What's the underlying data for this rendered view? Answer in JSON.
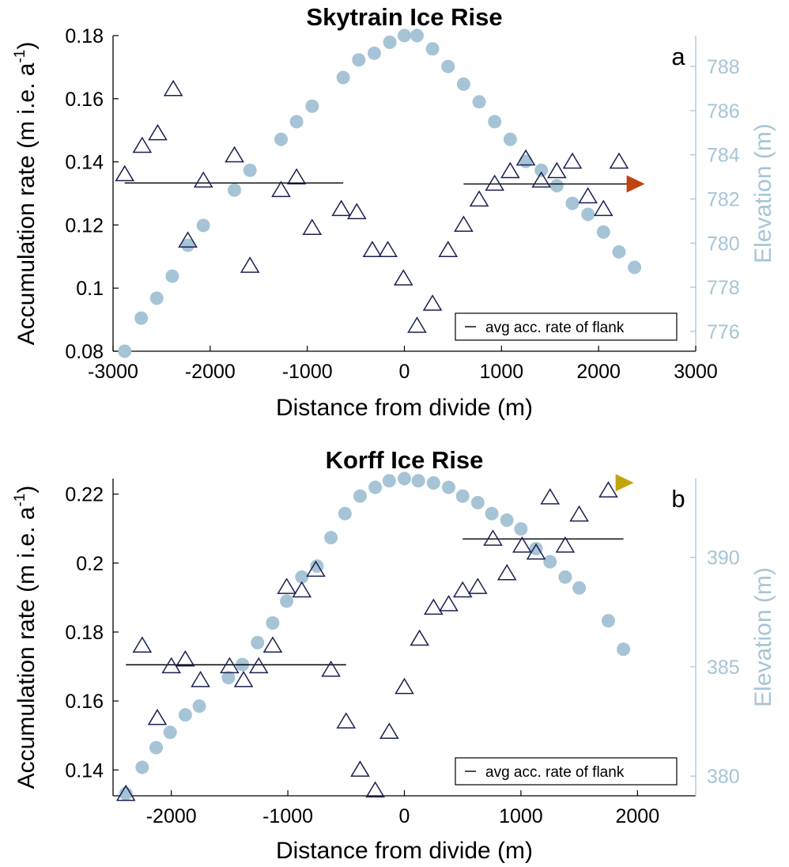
{
  "chart_data": [
    {
      "type": "scatter",
      "title": "Skytrain Ice Rise",
      "panel_label": "a",
      "xlabel": "Distance from divide (m)",
      "ylabel": "Accumulation rate (m i.e. a",
      "ylabel_superscript": "-1",
      "ylabel_close": ")",
      "y2label": "Elevation (m)",
      "xlim": [
        -3000,
        3000
      ],
      "ylim": [
        0.08,
        0.18
      ],
      "y2lim": [
        775.1,
        789.4
      ],
      "xticks": [
        -3000,
        -2000,
        -1000,
        0,
        1000,
        2000,
        3000
      ],
      "xtick_labels": [
        "-3000",
        "-2000",
        "-1000",
        "0",
        "1000",
        "2000",
        "3000"
      ],
      "yticks": [
        0.08,
        0.1,
        0.12,
        0.14,
        0.16,
        0.18
      ],
      "ytick_labels": [
        "0.08",
        "0.1",
        "0.12",
        "0.14",
        "0.16",
        "0.18"
      ],
      "y2ticks": [
        776,
        778,
        780,
        782,
        784,
        786,
        788
      ],
      "y2tick_labels": [
        "776",
        "778",
        "780",
        "782",
        "784",
        "786",
        "788"
      ],
      "legend": {
        "label": "avg acc. rate of flank",
        "position": "bottom-right"
      },
      "colors": {
        "accumulation": "#1a2050",
        "elevation": "#a6c4d6",
        "marker": "#c0440f",
        "axis_right": "#a6c4d6"
      },
      "elevation": {
        "x": [
          -2880,
          -2710,
          -2550,
          -2390,
          -2230,
          -2070,
          -1750,
          -1590,
          -1270,
          -1110,
          -950,
          -630,
          -470,
          -310,
          -150,
          0,
          130,
          290,
          450,
          610,
          770,
          930,
          1090,
          1250,
          1410,
          1570,
          1730,
          1890,
          2050,
          2210,
          2370
        ],
        "y": [
          775.1,
          776.6,
          777.5,
          778.5,
          779.9,
          780.8,
          782.4,
          783.3,
          784.7,
          785.5,
          786.2,
          787.5,
          788.3,
          788.6,
          789.1,
          789.4,
          789.4,
          788.8,
          788.0,
          787.2,
          786.4,
          785.5,
          784.7,
          783.7,
          783.3,
          782.6,
          781.8,
          781.3,
          780.5,
          779.6,
          778.9
        ]
      },
      "accumulation": {
        "x": [
          -2880,
          -2700,
          -2540,
          -2380,
          -2230,
          -2070,
          -1750,
          -1590,
          -1270,
          -1110,
          -950,
          -650,
          -490,
          -330,
          -170,
          -10,
          130,
          290,
          450,
          610,
          770,
          930,
          1090,
          1250,
          1410,
          1570,
          1730,
          1890,
          2050,
          2210
        ],
        "y": [
          0.136,
          0.145,
          0.149,
          0.163,
          0.115,
          0.134,
          0.142,
          0.107,
          0.131,
          0.135,
          0.119,
          0.125,
          0.124,
          0.112,
          0.112,
          0.103,
          0.088,
          0.095,
          0.112,
          0.12,
          0.128,
          0.133,
          0.137,
          0.141,
          0.134,
          0.137,
          0.14,
          0.129,
          0.125,
          0.14
        ]
      },
      "flank_averages": [
        {
          "x": [
            -2880,
            -630
          ],
          "y": 0.1333
        },
        {
          "x": [
            610,
            2370
          ],
          "y": 0.133
        }
      ],
      "marker_point": {
        "x": 2370,
        "y": 0.133
      }
    },
    {
      "type": "scatter",
      "title": "Korff Ice Rise",
      "panel_label": "b",
      "xlabel": "Distance from divide (m)",
      "ylabel": "Accumulation rate (m i.e. a",
      "ylabel_superscript": "-1",
      "ylabel_close": ")",
      "y2label": "Elevation (m)",
      "xlim": [
        -2500,
        2500
      ],
      "ylim": [
        0.1325,
        0.2245
      ],
      "y2lim": [
        379.1,
        393.6
      ],
      "xticks": [
        -2000,
        -1000,
        0,
        1000,
        2000
      ],
      "xtick_labels": [
        "-2000",
        "-1000",
        "0",
        "1000",
        "2000"
      ],
      "yticks": [
        0.14,
        0.16,
        0.18,
        0.2,
        0.22
      ],
      "ytick_labels": [
        "0.14",
        "0.16",
        "0.18",
        "0.2",
        "0.22"
      ],
      "y2ticks": [
        380,
        385,
        390
      ],
      "y2tick_labels": [
        "380",
        "385",
        "390"
      ],
      "legend": {
        "label": "avg acc. rate of flank",
        "position": "bottom-right"
      },
      "colors": {
        "accumulation": "#1a2050",
        "elevation": "#a6c4d6",
        "marker": "#c2a40f",
        "axis_right": "#a6c4d6"
      },
      "elevation": {
        "x": [
          -2390,
          -2250,
          -2130,
          -2010,
          -1880,
          -1760,
          -1510,
          -1390,
          -1260,
          -1130,
          -1010,
          -880,
          -750,
          -630,
          -510,
          -380,
          -250,
          -130,
          0,
          120,
          250,
          380,
          500,
          630,
          750,
          880,
          1000,
          1130,
          1250,
          1380,
          1500,
          1750,
          1880
        ],
        "y": [
          379.2,
          380.4,
          381.3,
          382.0,
          382.8,
          383.2,
          384.5,
          385.1,
          386.1,
          387.0,
          388.0,
          389.1,
          389.6,
          390.9,
          392.0,
          392.8,
          393.2,
          393.5,
          393.6,
          393.5,
          393.4,
          393.2,
          392.8,
          392.5,
          392.0,
          391.7,
          391.3,
          390.4,
          389.8,
          389.1,
          388.6,
          387.1,
          385.8
        ]
      },
      "accumulation": {
        "x": [
          -2390,
          -2250,
          -2120,
          -2000,
          -1880,
          -1750,
          -1500,
          -1380,
          -1250,
          -1130,
          -1010,
          -880,
          -760,
          -630,
          -500,
          -380,
          -250,
          -130,
          0,
          130,
          250,
          380,
          500,
          630,
          760,
          880,
          1010,
          1130,
          1250,
          1380,
          1500,
          1750
        ],
        "y": [
          0.133,
          0.176,
          0.155,
          0.17,
          0.172,
          0.166,
          0.17,
          0.166,
          0.17,
          0.176,
          0.193,
          0.192,
          0.198,
          0.169,
          0.154,
          0.14,
          0.134,
          0.151,
          0.164,
          0.178,
          0.187,
          0.188,
          0.192,
          0.193,
          0.207,
          0.197,
          0.205,
          0.203,
          0.219,
          0.205,
          0.214,
          0.221
        ]
      },
      "flank_averages": [
        {
          "x": [
            -2390,
            -500
          ],
          "y": 0.1705
        },
        {
          "x": [
            500,
            1880
          ],
          "y": 0.207
        }
      ],
      "marker_point": {
        "x": 1880,
        "y": 0.2233
      }
    }
  ]
}
